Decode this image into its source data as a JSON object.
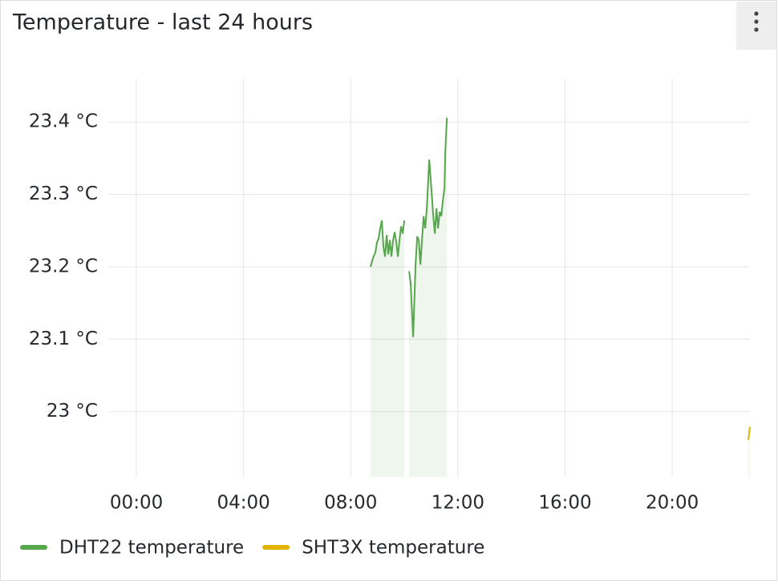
{
  "chart_data": {
    "type": "line",
    "title": "Temperature - last 24 hours",
    "xlim": [
      -1.05,
      22.9
    ],
    "xticks": [
      {
        "value": 0,
        "label": "00:00"
      },
      {
        "value": 4,
        "label": "04:00"
      },
      {
        "value": 8,
        "label": "08:00"
      },
      {
        "value": 12,
        "label": "12:00"
      },
      {
        "value": 16,
        "label": "16:00"
      },
      {
        "value": 20,
        "label": "20:00"
      }
    ],
    "ylim": [
      22.91,
      23.46
    ],
    "yticks": [
      {
        "value": 23,
        "label": "23 °C"
      },
      {
        "value": 23.1,
        "label": "23.1 °C"
      },
      {
        "value": 23.2,
        "label": "23.2 °C"
      },
      {
        "value": 23.3,
        "label": "23.3 °C"
      },
      {
        "value": 23.4,
        "label": "23.4 °C"
      }
    ],
    "grid": true,
    "legend": "bottom-left",
    "series": [
      {
        "name": "DHT22 temperature",
        "color": "#56a64b",
        "fill": true,
        "x": [
          8.74,
          8.83,
          8.92,
          8.98,
          9.04,
          9.1,
          9.16,
          9.22,
          9.28,
          9.34,
          9.4,
          9.46,
          9.52,
          9.58,
          9.64,
          9.7,
          9.76,
          9.82,
          9.88,
          9.94,
          10.0,
          10.09,
          10.18,
          10.24,
          10.33,
          10.42,
          10.48,
          10.54,
          10.6,
          10.66,
          10.72,
          10.78,
          10.84,
          10.93,
          11.02,
          11.08,
          11.14,
          11.2,
          11.26,
          11.32,
          11.38,
          11.44,
          11.5,
          11.53,
          11.59
        ],
        "values": [
          23.2,
          23.212,
          23.22,
          23.234,
          23.239,
          23.253,
          23.264,
          23.228,
          23.214,
          23.244,
          23.217,
          23.237,
          23.214,
          23.237,
          23.248,
          23.234,
          23.214,
          23.237,
          23.256,
          23.246,
          23.264,
          null,
          23.194,
          23.176,
          23.103,
          23.203,
          23.242,
          23.237,
          23.203,
          23.237,
          23.27,
          23.253,
          23.281,
          23.348,
          23.303,
          23.27,
          23.246,
          23.281,
          23.253,
          23.276,
          23.27,
          23.292,
          23.309,
          23.359,
          23.406
        ]
      },
      {
        "name": "SHT3X temperature",
        "color": "#e0b400",
        "fill": true,
        "x": [
          22.84,
          22.9
        ],
        "values": [
          22.961,
          22.979
        ]
      }
    ]
  }
}
